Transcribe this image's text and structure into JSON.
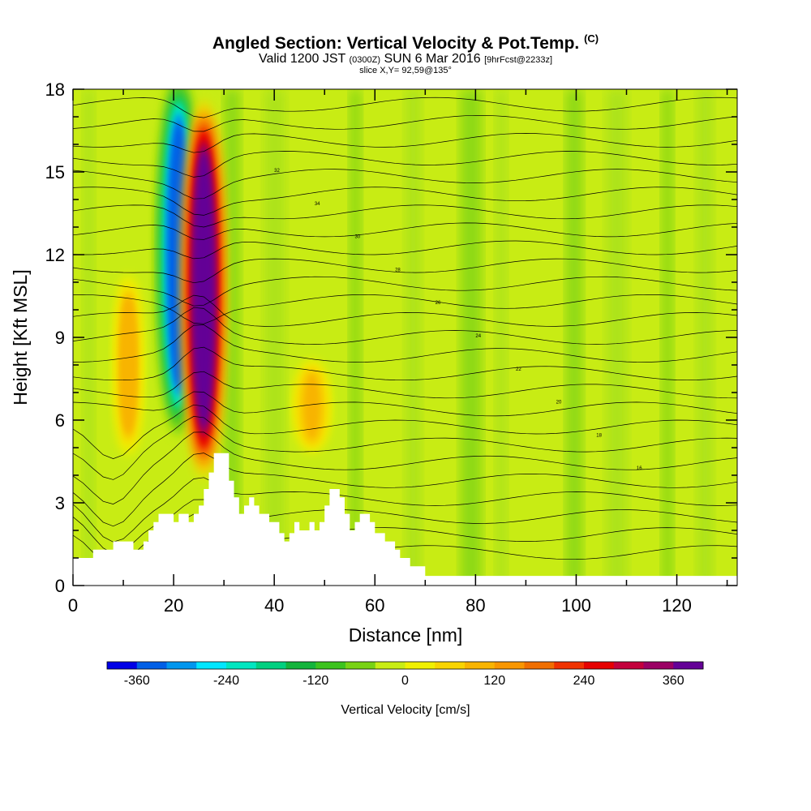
{
  "header": {
    "title_main": "Angled Section: Vertical Velocity & Pot.Temp.",
    "title_suffix": "(C)",
    "valid_prefix": "Valid 1200 JST",
    "valid_zulu": "(0300Z)",
    "valid_date": "SUN 6 Mar 2016",
    "forecast": "[9hrFcst@2233z]",
    "slice": "slice X,Y= 92,59@135°"
  },
  "chart_data": {
    "type": "heatmap",
    "title": "Angled Section: Vertical Velocity & Pot.Temp.",
    "xlabel": "Distance [nm]",
    "ylabel": "Height [Kft MSL]",
    "xlim": [
      0,
      132
    ],
    "ylim": [
      0,
      18
    ],
    "x_ticks": [
      0,
      20,
      40,
      60,
      80,
      100,
      120
    ],
    "y_ticks": [
      0,
      3,
      6,
      9,
      12,
      15,
      18
    ],
    "colorbar": {
      "label": "Vertical Velocity [cm/s]",
      "tick_values": [
        -360,
        -240,
        -120,
        0,
        120,
        240,
        360
      ],
      "bounds": [
        -400,
        400
      ],
      "colors": [
        "#0000e6",
        "#005fe6",
        "#0096ee",
        "#00e6ff",
        "#00e6c0",
        "#00d080",
        "#14b43c",
        "#3cc31e",
        "#78d214",
        "#c8ec14",
        "#f0f000",
        "#f8d400",
        "#f8b400",
        "#f89600",
        "#f06e00",
        "#f03200",
        "#e60000",
        "#c3003c",
        "#9b0064",
        "#640096"
      ]
    },
    "vertical_velocity_features": [
      {
        "kind": "downdraft",
        "x": [
          18,
          24
        ],
        "y": [
          6,
          18
        ],
        "min_value": -360
      },
      {
        "kind": "updraft",
        "x": [
          23,
          29
        ],
        "y": [
          4.5,
          17
        ],
        "max_value": 400
      },
      {
        "kind": "updraft",
        "x": [
          9,
          13
        ],
        "y": [
          5,
          11
        ],
        "max_value": 100
      },
      {
        "kind": "updraft",
        "x": [
          45,
          50
        ],
        "y": [
          5,
          8
        ],
        "max_value": 80
      }
    ],
    "terrain": [
      [
        0,
        1
      ],
      [
        4,
        1
      ],
      [
        4,
        1.3
      ],
      [
        8,
        1.3
      ],
      [
        8,
        1.6
      ],
      [
        12,
        1.6
      ],
      [
        12,
        1.3
      ],
      [
        14,
        1.3
      ],
      [
        14,
        1.6
      ],
      [
        15,
        1.6
      ],
      [
        15,
        2
      ],
      [
        16,
        2
      ],
      [
        16,
        2.3
      ],
      [
        17,
        2.3
      ],
      [
        17,
        2.6
      ],
      [
        20,
        2.6
      ],
      [
        20,
        2.3
      ],
      [
        21,
        2.3
      ],
      [
        21,
        2.6
      ],
      [
        23,
        2.6
      ],
      [
        23,
        2.3
      ],
      [
        24,
        2.3
      ],
      [
        24,
        2.6
      ],
      [
        25,
        2.6
      ],
      [
        25,
        2.9
      ],
      [
        26,
        2.9
      ],
      [
        26,
        3.5
      ],
      [
        27,
        3.5
      ],
      [
        27,
        4.1
      ],
      [
        28,
        4.1
      ],
      [
        28,
        4.8
      ],
      [
        31,
        4.8
      ],
      [
        31,
        3.8
      ],
      [
        32,
        3.8
      ],
      [
        32,
        3.2
      ],
      [
        33,
        3.2
      ],
      [
        33,
        2.6
      ],
      [
        34,
        2.6
      ],
      [
        34,
        2.9
      ],
      [
        35,
        2.9
      ],
      [
        35,
        3.2
      ],
      [
        36,
        3.2
      ],
      [
        36,
        2.9
      ],
      [
        37,
        2.9
      ],
      [
        37,
        2.6
      ],
      [
        39,
        2.6
      ],
      [
        39,
        2.3
      ],
      [
        41,
        2.3
      ],
      [
        41,
        1.9
      ],
      [
        42,
        1.9
      ],
      [
        42,
        1.6
      ],
      [
        43,
        1.6
      ],
      [
        43,
        1.9
      ],
      [
        44,
        1.9
      ],
      [
        44,
        2.3
      ],
      [
        45,
        2.3
      ],
      [
        45,
        2
      ],
      [
        47,
        2
      ],
      [
        47,
        2.3
      ],
      [
        48,
        2.3
      ],
      [
        48,
        2
      ],
      [
        49,
        2
      ],
      [
        49,
        2.3
      ],
      [
        50,
        2.3
      ],
      [
        50,
        2.9
      ],
      [
        51,
        2.9
      ],
      [
        51,
        3.5
      ],
      [
        53,
        3.5
      ],
      [
        53,
        3.2
      ],
      [
        54,
        3.2
      ],
      [
        54,
        2.6
      ],
      [
        55,
        2.6
      ],
      [
        55,
        2
      ],
      [
        56,
        2
      ],
      [
        56,
        2.3
      ],
      [
        57,
        2.3
      ],
      [
        57,
        2.6
      ],
      [
        59,
        2.6
      ],
      [
        59,
        2.3
      ],
      [
        60,
        2.3
      ],
      [
        60,
        1.9
      ],
      [
        62,
        1.9
      ],
      [
        62,
        1.6
      ],
      [
        64,
        1.6
      ],
      [
        64,
        1.3
      ],
      [
        65,
        1.3
      ],
      [
        65,
        1
      ],
      [
        67,
        1
      ],
      [
        67,
        0.7
      ],
      [
        70,
        0.7
      ],
      [
        70,
        0.35
      ],
      [
        132,
        0.35
      ]
    ],
    "theta_contour_labels": [
      "32",
      "34",
      "30",
      "28",
      "26",
      "24",
      "22",
      "20",
      "18",
      "16"
    ]
  }
}
